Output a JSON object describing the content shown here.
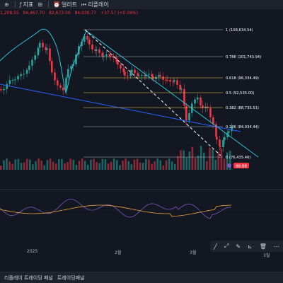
{
  "topbar": {
    "indicators_label": "지표",
    "alert_label": "얼러트",
    "replay_label": "리플레이"
  },
  "ohlc": {
    "v1": "1,208.55",
    "v2": "84,467.70",
    "v3": "82,673.00",
    "v4": "84,030.77",
    "change": "+37.57 (+0.04%)"
  },
  "fib_levels": [
    {
      "label": "1 (108,634.54)",
      "color": "#b2b5be"
    },
    {
      "label": "0.786 (101,743.94)",
      "color": "#b2b5be"
    },
    {
      "label": "0.618 (96,334.49)",
      "color": "#f2c94c"
    },
    {
      "label": "0.5 (92,535.00)",
      "color": "#f2c94c"
    },
    {
      "label": "0.382 (88,735.51)",
      "color": "#f2c94c"
    },
    {
      "label": "0.236 (84,034.44)",
      "color": "#b2b5be"
    },
    {
      "label": "0 (76,435.46)",
      "color": "#b2b5be"
    }
  ],
  "colors": {
    "up": "#26a69a",
    "down": "#f23645",
    "trendline": "#2962ff",
    "channel": "#26c6da",
    "badge": "#f23645"
  },
  "badge": {
    "text": "88:88"
  },
  "time_axis": [
    "2025",
    "2월",
    "3월"
  ],
  "toolbar_icons": [
    "pen-icon",
    "line-icon",
    "brush-icon",
    "ruler-icon",
    "trash-icon",
    "more-icon"
  ],
  "right_stub": "3월",
  "bottombar": {
    "tab1": "리플레이 트레이딩 패널",
    "tab2": "트레이딩패널"
  }
}
